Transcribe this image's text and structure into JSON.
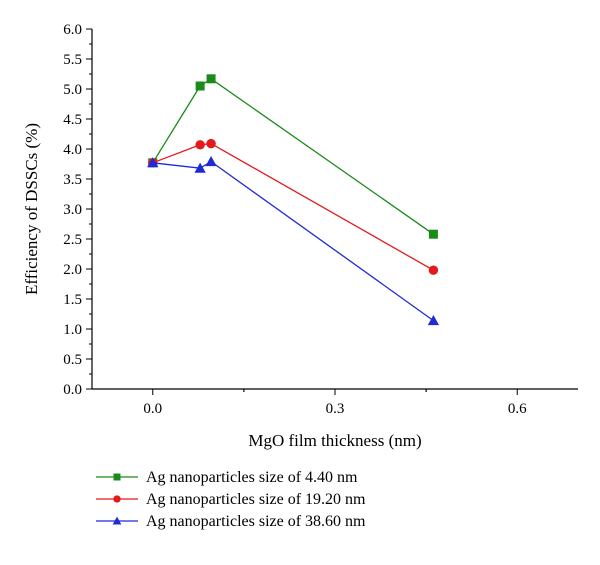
{
  "chart_data": {
    "type": "line",
    "title": "",
    "xlabel": "MgO film thickness (nm)",
    "ylabel": "Efficiency of DSSCs (%)",
    "xlim": [
      -0.1,
      0.7
    ],
    "ylim": [
      0.0,
      6.0
    ],
    "x_ticks": [
      0.0,
      0.3,
      0.6
    ],
    "x_tick_labels": [
      "0.0",
      "0.3",
      "0.6"
    ],
    "y_ticks": [
      0.0,
      0.5,
      1.0,
      1.5,
      2.0,
      2.5,
      3.0,
      3.5,
      4.0,
      4.5,
      5.0,
      5.5,
      6.0
    ],
    "y_tick_labels": [
      "0.0",
      "0.5",
      "1.0",
      "1.5",
      "2.0",
      "2.5",
      "3.0",
      "3.5",
      "4.0",
      "4.5",
      "5.0",
      "5.5",
      "6.0"
    ],
    "grid": false,
    "legend_position": "bottom",
    "series": [
      {
        "name": "Ag nanoparticles size of 4.40 nm",
        "color": "#1a8a1a",
        "marker": "square",
        "points": [
          {
            "x": 0.0,
            "y": 3.77
          },
          {
            "x": 0.078,
            "y": 5.05
          },
          {
            "x": 0.096,
            "y": 5.17
          },
          {
            "x": 0.462,
            "y": 2.58
          }
        ]
      },
      {
        "name": "Ag nanoparticles size of 19.20 nm",
        "color": "#e31a1c",
        "marker": "circle",
        "points": [
          {
            "x": 0.0,
            "y": 3.77
          },
          {
            "x": 0.078,
            "y": 4.07
          },
          {
            "x": 0.096,
            "y": 4.09
          },
          {
            "x": 0.462,
            "y": 1.98
          }
        ]
      },
      {
        "name": "Ag nanoparticles size of 38.60 nm",
        "color": "#1f2ad6",
        "marker": "triangle",
        "points": [
          {
            "x": 0.0,
            "y": 3.77
          },
          {
            "x": 0.078,
            "y": 3.68
          },
          {
            "x": 0.096,
            "y": 3.79
          },
          {
            "x": 0.462,
            "y": 1.14
          }
        ]
      }
    ]
  }
}
